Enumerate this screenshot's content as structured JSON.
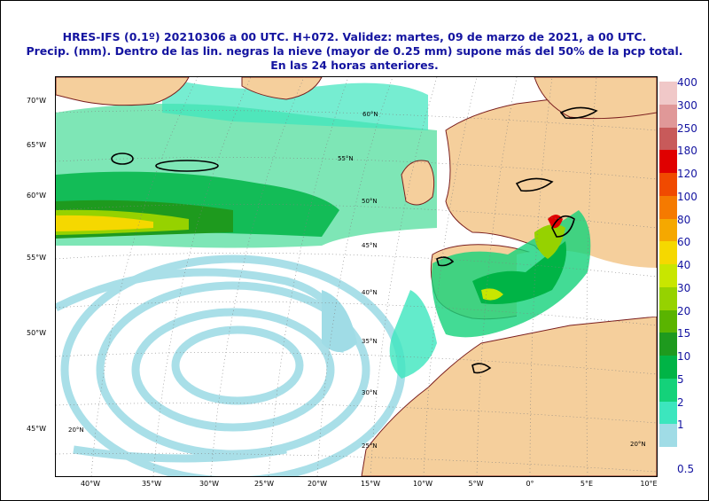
{
  "title": {
    "line1": "HRES-IFS (0.1º) 20210306 a 00 UTC.  H+072. Validez: martes, 09 de marzo de 2021,  a  00 UTC.",
    "line2": "Precip. (mm). Dentro de las lin. negras la nieve (mayor de 0.25 mm) supone más del 50% de la pcp total.",
    "line3": "En las 24 horas anteriores."
  },
  "map": {
    "lat_axis_labels": [
      "70°W",
      "65°W",
      "60°W",
      "55°W",
      "50°W",
      "45°W"
    ],
    "lon_axis_labels": [
      "40°W",
      "35°W",
      "30°W",
      "25°W",
      "20°W",
      "15°W",
      "10°W",
      "5°W",
      "0°",
      "5°E",
      "10°E"
    ],
    "grid_labels": [
      "60°N",
      "55°N",
      "50°N",
      "45°N",
      "40°N",
      "35°N",
      "30°N",
      "25°N",
      "20°N",
      "20°N"
    ],
    "colors": {
      "land": "#f5cf9c",
      "sea": "#ffffff",
      "coast": "#7a1e1e",
      "snow_contour": "#000000"
    }
  },
  "legend": {
    "levels": [
      {
        "label": "400",
        "color": "#f0c8c8"
      },
      {
        "label": "300",
        "color": "#e09898"
      },
      {
        "label": "250",
        "color": "#c85a5a"
      },
      {
        "label": "180",
        "color": "#e00000"
      },
      {
        "label": "120",
        "color": "#f04a00"
      },
      {
        "label": "100",
        "color": "#f57a00"
      },
      {
        "label": "80",
        "color": "#f5a800"
      },
      {
        "label": "60",
        "color": "#f5d800"
      },
      {
        "label": "40",
        "color": "#c8e600"
      },
      {
        "label": "30",
        "color": "#96d200"
      },
      {
        "label": "20",
        "color": "#5ab400"
      },
      {
        "label": "15",
        "color": "#1e9a1e"
      },
      {
        "label": "10",
        "color": "#00b446"
      },
      {
        "label": "5",
        "color": "#14d27a"
      },
      {
        "label": "2",
        "color": "#3ce6be"
      },
      {
        "label": "1",
        "color": "#a0dce6"
      },
      {
        "label": "0.5",
        "color": "#ffffff"
      }
    ]
  }
}
